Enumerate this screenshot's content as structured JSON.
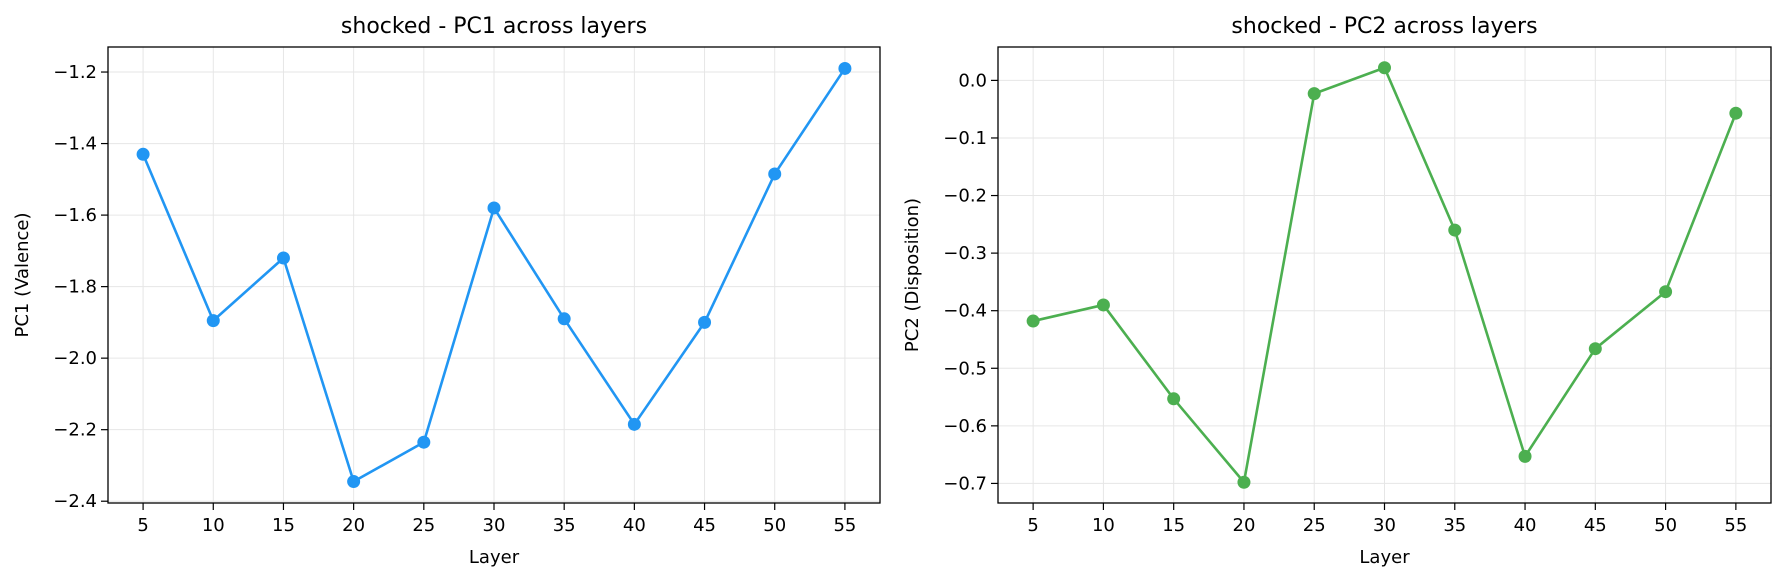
{
  "chart_data": [
    {
      "type": "line",
      "title": "shocked - PC1 across layers",
      "xlabel": "Layer",
      "ylabel": "PC1 (Valence)",
      "x": [
        5,
        10,
        15,
        20,
        25,
        30,
        35,
        40,
        45,
        50,
        55
      ],
      "y": [
        -1.43,
        -1.895,
        -1.72,
        -2.345,
        -2.235,
        -1.58,
        -1.89,
        -2.185,
        -1.9,
        -1.485,
        -1.19
      ],
      "xticks": [
        "5",
        "10",
        "15",
        "20",
        "25",
        "30",
        "35",
        "40",
        "45",
        "50",
        "55"
      ],
      "yticks": [
        "−2.4",
        "−2.2",
        "−2.0",
        "−1.8",
        "−1.6",
        "−1.4",
        "−1.2"
      ],
      "ytick_values": [
        -2.4,
        -2.2,
        -2.0,
        -1.8,
        -1.6,
        -1.4,
        -1.2
      ],
      "xlim": [
        2.5,
        57.5
      ],
      "ylim": [
        -2.405,
        -1.13
      ],
      "color": "#2196F3",
      "grid": true
    },
    {
      "type": "line",
      "title": "shocked - PC2 across layers",
      "xlabel": "Layer",
      "ylabel": "PC2 (Disposition)",
      "x": [
        5,
        10,
        15,
        20,
        25,
        30,
        35,
        40,
        45,
        50,
        55
      ],
      "y": [
        -0.418,
        -0.39,
        -0.553,
        -0.698,
        -0.023,
        0.022,
        -0.26,
        -0.653,
        -0.466,
        -0.367,
        -0.057
      ],
      "xticks": [
        "5",
        "10",
        "15",
        "20",
        "25",
        "30",
        "35",
        "40",
        "45",
        "50",
        "55"
      ],
      "yticks": [
        "−0.7",
        "−0.6",
        "−0.5",
        "−0.4",
        "−0.3",
        "−0.2",
        "−0.1",
        "0.0"
      ],
      "ytick_values": [
        -0.7,
        -0.6,
        -0.5,
        -0.4,
        -0.3,
        -0.2,
        -0.1,
        0.0
      ],
      "xlim": [
        2.5,
        57.5
      ],
      "ylim": [
        -0.734,
        0.058
      ],
      "color": "#4CAF50",
      "grid": true
    }
  ]
}
